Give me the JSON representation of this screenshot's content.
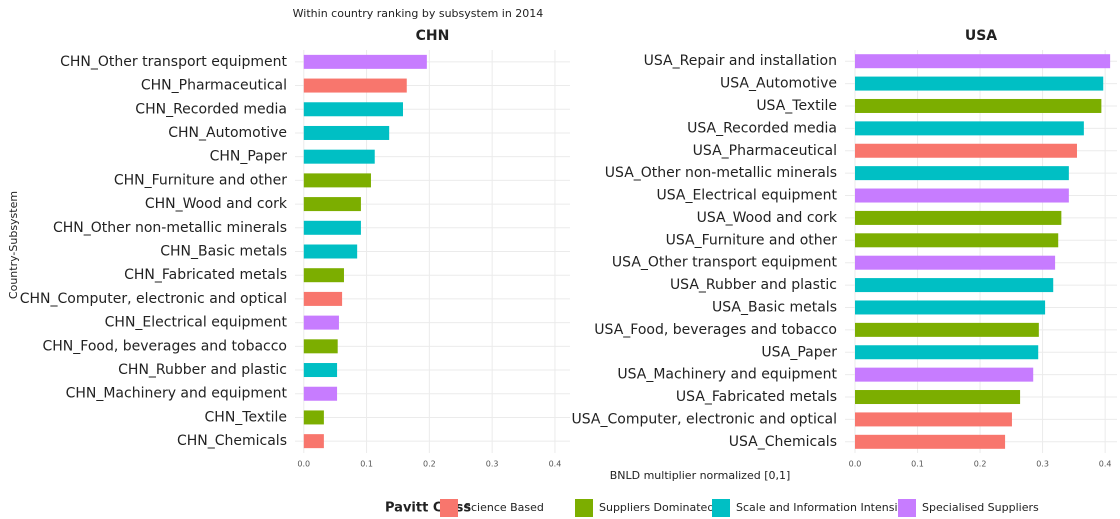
{
  "title": "Within country ranking by subsystem in 2014",
  "y_label": "Country-Subsystem",
  "x_label": "BNLD multiplier normalized [0,1]",
  "legend": {
    "title": "Pavitt Class",
    "items": [
      {
        "name": "Science Based",
        "color": "#F8766D"
      },
      {
        "name": "Suppliers Dominated",
        "color": "#7CAE00"
      },
      {
        "name": "Scale and Information Intensive",
        "color": "#00BFC4"
      },
      {
        "name": "Specialised Suppliers",
        "color": "#C77CFF"
      }
    ]
  },
  "chart_data": [
    {
      "type": "barh",
      "title": "CHN",
      "categories": [
        "CHN_Other transport equipment",
        "CHN_Pharmaceutical",
        "CHN_Recorded media",
        "CHN_Automotive",
        "CHN_Paper",
        "CHN_Furniture and other",
        "CHN_Wood and cork",
        "CHN_Other non-metallic minerals",
        "CHN_Basic metals",
        "CHN_Fabricated metals",
        "CHN_Computer, electronic and optical",
        "CHN_Electrical equipment",
        "CHN_Food, beverages and tobacco",
        "CHN_Rubber and plastic",
        "CHN_Machinery and equipment",
        "CHN_Textile",
        "CHN_Chemicals"
      ],
      "values": [
        0.196,
        0.164,
        0.158,
        0.136,
        0.113,
        0.107,
        0.091,
        0.091,
        0.085,
        0.064,
        0.061,
        0.056,
        0.054,
        0.053,
        0.053,
        0.032,
        0.032
      ],
      "colors": [
        "#C77CFF",
        "#F8766D",
        "#00BFC4",
        "#00BFC4",
        "#00BFC4",
        "#7CAE00",
        "#7CAE00",
        "#00BFC4",
        "#00BFC4",
        "#7CAE00",
        "#F8766D",
        "#C77CFF",
        "#7CAE00",
        "#00BFC4",
        "#C77CFF",
        "#7CAE00",
        "#F8766D"
      ],
      "xlim": [
        -0.014,
        0.424
      ],
      "xticks": [
        {
          "value": 0,
          "label": "0.0"
        },
        0.1,
        0.2,
        0.3,
        0.4
      ],
      "grid": true
    },
    {
      "type": "barh",
      "title": "USA",
      "categories": [
        "USA_Repair and installation",
        "USA_Automotive",
        "USA_Textile",
        "USA_Recorded media",
        "USA_Pharmaceutical",
        "USA_Other non-metallic minerals",
        "USA_Electrical equipment",
        "USA_Wood and cork",
        "USA_Furniture and other",
        "USA_Other transport equipment",
        "USA_Rubber and plastic",
        "USA_Basic metals",
        "USA_Food, beverages and tobacco",
        "USA_Paper",
        "USA_Machinery and equipment",
        "USA_Fabricated metals",
        "USA_Computer, electronic and optical",
        "USA_Chemicals"
      ],
      "values": [
        0.408,
        0.397,
        0.394,
        0.366,
        0.355,
        0.342,
        0.342,
        0.33,
        0.325,
        0.32,
        0.317,
        0.304,
        0.294,
        0.293,
        0.285,
        0.264,
        0.251,
        0.24
      ],
      "colors": [
        "#C77CFF",
        "#00BFC4",
        "#7CAE00",
        "#00BFC4",
        "#F8766D",
        "#00BFC4",
        "#C77CFF",
        "#7CAE00",
        "#7CAE00",
        "#C77CFF",
        "#00BFC4",
        "#00BFC4",
        "#7CAE00",
        "#00BFC4",
        "#C77CFF",
        "#7CAE00",
        "#F8766D",
        "#F8766D"
      ],
      "xlim": [
        -0.016,
        0.419
      ],
      "xticks": [
        {
          "value": 0,
          "label": "0.0"
        },
        0.1,
        0.2,
        0.3,
        0.4
      ],
      "grid": true
    }
  ]
}
